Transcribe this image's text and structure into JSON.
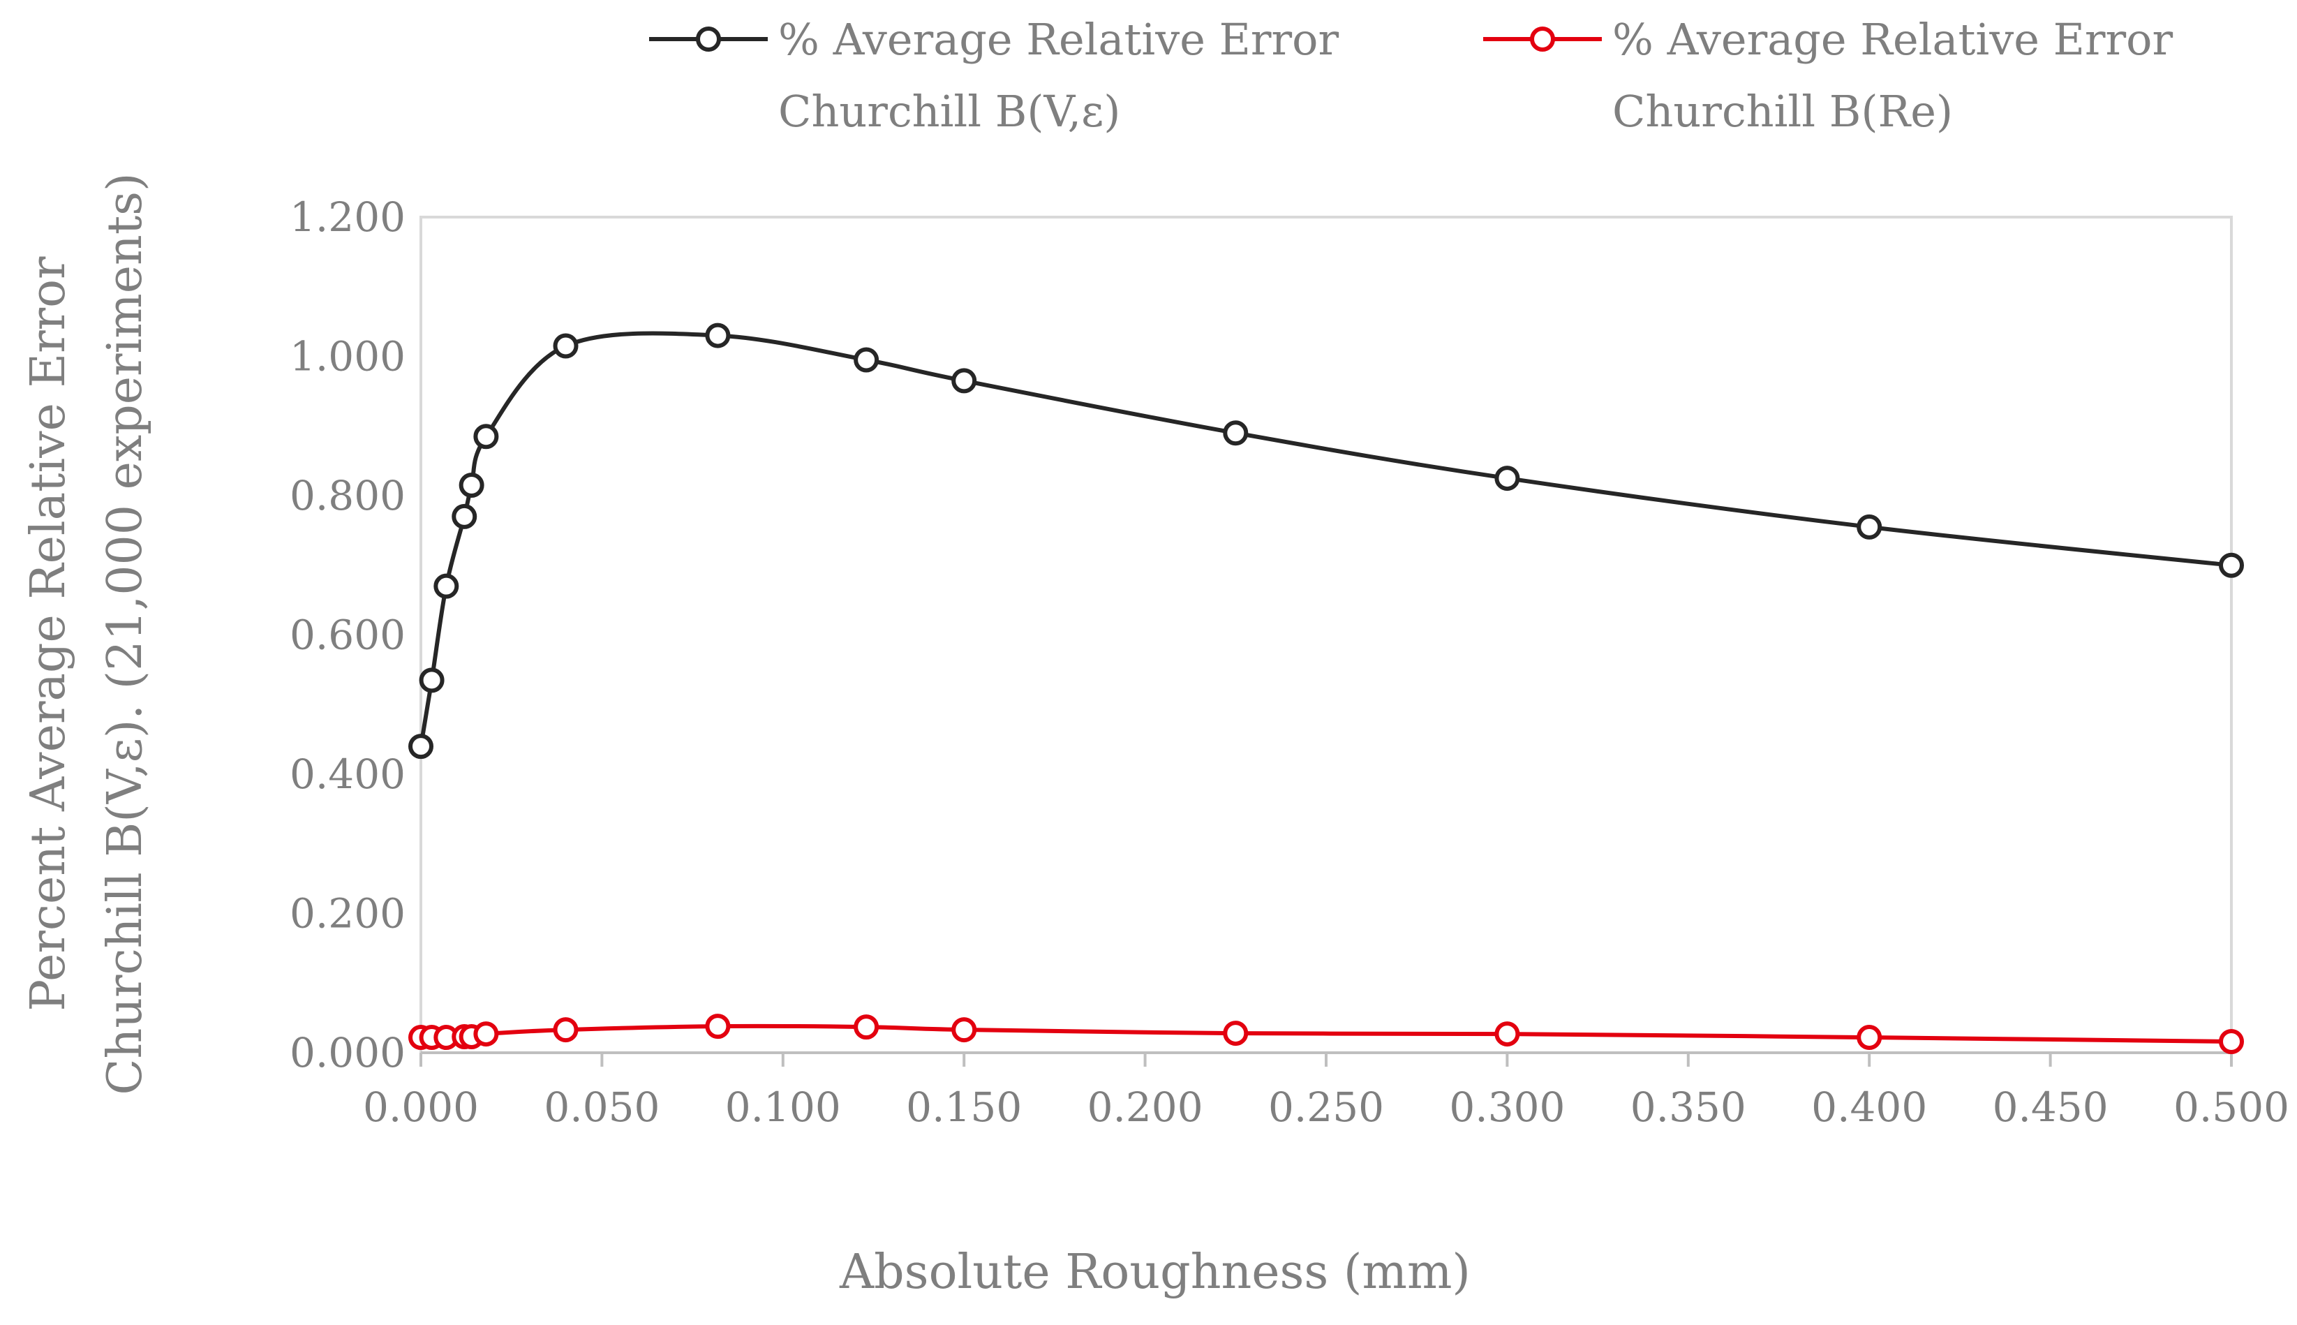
{
  "chart_data": {
    "type": "line",
    "xlabel": "Absolute Roughness (mm)",
    "ylabel_lines": [
      "Percent Average Relative Error",
      "Churchill B(V,ε). (21,000 experiments)"
    ],
    "xlim": [
      0,
      0.5
    ],
    "ylim": [
      0,
      1.2
    ],
    "x_ticks": [
      "0.000",
      "0.050",
      "0.100",
      "0.150",
      "0.200",
      "0.250",
      "0.300",
      "0.350",
      "0.400",
      "0.450",
      "0.500"
    ],
    "y_ticks": [
      "0.000",
      "0.200",
      "0.400",
      "0.600",
      "0.800",
      "1.000",
      "1.200"
    ],
    "grid": false,
    "legend_position": "top",
    "series": [
      {
        "name_lines": [
          "% Average  Relative  Error",
          "Churchill B(V,ε)"
        ],
        "color": "#262626",
        "marker": "open-circle",
        "x": [
          0.0,
          0.003,
          0.007,
          0.012,
          0.014,
          0.018,
          0.04,
          0.082,
          0.123,
          0.15,
          0.225,
          0.3,
          0.4,
          0.5
        ],
        "y": [
          0.44,
          0.535,
          0.67,
          0.77,
          0.815,
          0.885,
          1.015,
          1.03,
          0.995,
          0.965,
          0.89,
          0.825,
          0.755,
          0.7
        ]
      },
      {
        "name_lines": [
          "% Average Relative Error",
          "Churchill B(Re)"
        ],
        "color": "#e3000f",
        "marker": "open-circle",
        "x": [
          0.0,
          0.003,
          0.007,
          0.012,
          0.014,
          0.018,
          0.04,
          0.082,
          0.123,
          0.15,
          0.225,
          0.3,
          0.4,
          0.5
        ],
        "y": [
          0.022,
          0.022,
          0.022,
          0.023,
          0.023,
          0.027,
          0.033,
          0.038,
          0.037,
          0.033,
          0.028,
          0.027,
          0.022,
          0.016
        ]
      }
    ]
  }
}
